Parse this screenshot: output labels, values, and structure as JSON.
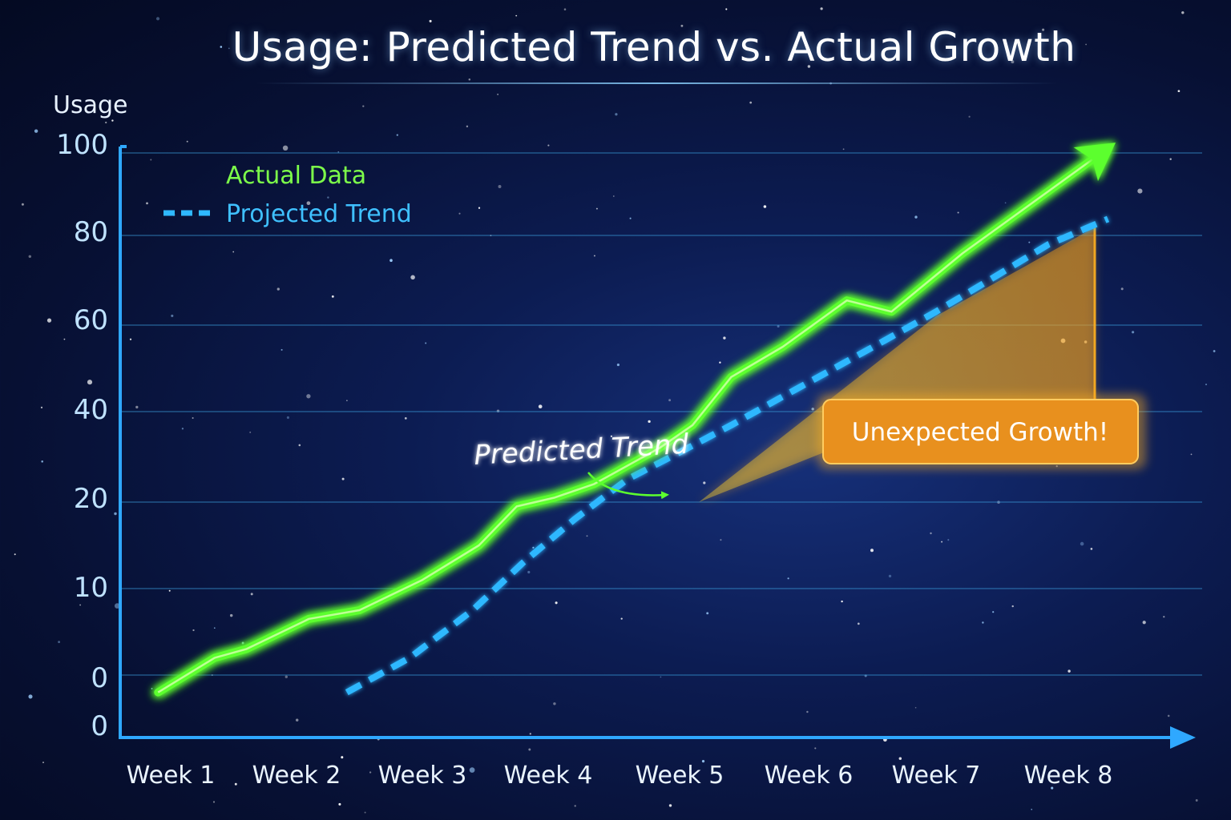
{
  "chart_data": {
    "type": "line",
    "title": "Usage: Predicted Trend vs. Actual Growth",
    "xlabel": "",
    "ylabel": "Usage",
    "categories": [
      "Week 1",
      "Week 2",
      "Week 3",
      "Week 4",
      "Week 5",
      "Week 6",
      "Week 7",
      "Week 8"
    ],
    "yticks": [
      "0",
      "0",
      "10",
      "20",
      "40",
      "60",
      "80",
      "100"
    ],
    "ylim": [
      0,
      100
    ],
    "legend_position": "top-left",
    "grid": true,
    "series": [
      {
        "name": "Actual Data",
        "color": "#5cff2e",
        "style": "solid",
        "x": [
          0.9,
          1.35,
          1.6,
          2.1,
          2.5,
          3.0,
          3.45,
          3.75,
          4.05,
          4.35,
          4.85,
          5.1,
          5.4,
          5.8,
          6.3,
          6.65,
          7.2,
          8.25
        ],
        "y": [
          -2,
          2,
          3,
          6.5,
          7.5,
          11,
          15,
          19.5,
          21,
          24,
          32,
          37,
          48,
          55,
          65.5,
          63,
          76,
          100
        ]
      },
      {
        "name": "Projected Trend",
        "color": "#2fb8ff",
        "style": "dashed",
        "x": [
          2.4,
          2.9,
          3.4,
          3.8,
          4.2,
          4.6,
          5.0,
          5.4,
          5.8,
          6.2,
          6.6,
          7.0,
          7.4,
          7.85,
          8.3
        ],
        "y": [
          -2,
          2,
          7.5,
          13,
          18,
          25,
          31,
          37,
          43.5,
          50,
          56.5,
          63,
          70,
          78,
          84
        ]
      }
    ],
    "annotations": [
      {
        "text": "Predicted Trend",
        "at_week": 4.8,
        "at_value": 22
      },
      {
        "text": "Unexpected Growth!",
        "at_week": 7.3,
        "at_value": 40
      }
    ]
  },
  "legend": {
    "actual": "Actual Data",
    "projected": "Projected Trend"
  },
  "colors": {
    "axis": "#2fa8ff",
    "grid": "#3a9ad8",
    "actual": "#5cff2e",
    "projected": "#2fb8ff",
    "highlight": "#f0a020",
    "callout_bg": "#e8901e"
  }
}
